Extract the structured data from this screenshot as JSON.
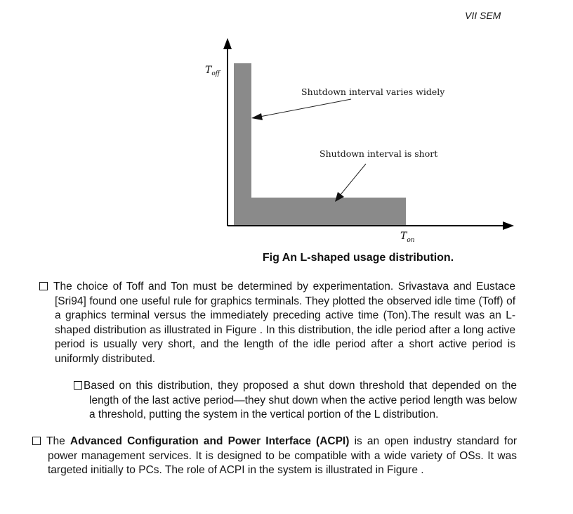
{
  "header": {
    "semester": "VII SEM"
  },
  "figure": {
    "y_axis_label": "T",
    "y_axis_sub": "off",
    "x_axis_label": "T",
    "x_axis_sub": "on",
    "annotation_top": "Shutdown interval varies widely",
    "annotation_bottom": "Shutdown interval is short",
    "caption": "Fig An L-shaped usage distribution.",
    "fill_color": "#8a8a8a"
  },
  "paragraphs": {
    "p1": "The choice of Toff and Ton must be determined by experimentation. Srivastava and Eustace [Sri94] found one useful rule for graphics terminals. They plotted the observed idle time (Toff) of a graphics terminal versus the immediately preceding active time (Ton).The result was an L-shaped distribution as illustrated in Figure . In this distribution, the idle period after a long active period is usually very short, and the length of the idle period after a short active period is uniformly distributed.",
    "p2": "Based on this distribution, they proposed a shut down threshold that depended on the length of the last active period—they shut down when the active period length was below a threshold, putting the system in the vertical portion of the L distribution.",
    "p3_prefix": "The ",
    "p3_bold": "Advanced Configuration and Power Interface (ACPI)",
    "p3_rest": " is an open industry standard for power management services. It is designed to be compatible with a wide variety of OSs. It was targeted initially to PCs. The role of ACPI in the system is illustrated in Figure ."
  }
}
